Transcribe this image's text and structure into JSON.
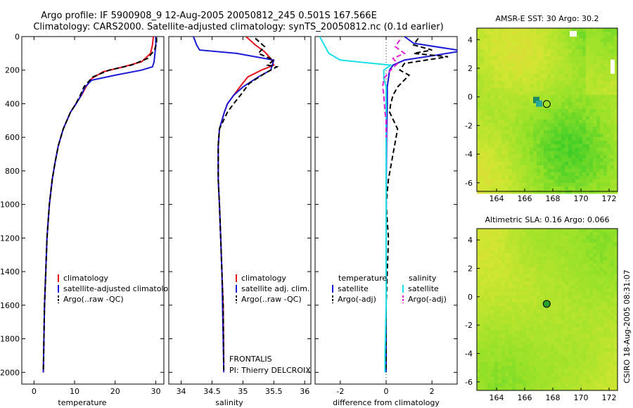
{
  "figure": {
    "title_line1": "Argo profile: IF 5900908_9 12-Aug-2005 20050812_245 0.501S 167.566E",
    "title_line2": "Climatology: CARS2000. Satellite-adjusted climatology: synTS_20050812.nc (0.1d earlier)",
    "credit": "CSIRO 18-Aug-2005 08:31:07",
    "program": "FRONTALIS",
    "pi": "PI: Thierry DELCROIX"
  },
  "colors": {
    "climatology": "#e8141b",
    "satellite": "#1a1ad6",
    "argo": "#000000",
    "satellite_diff_sal": "#19e0e8",
    "argo_diff_sal": "#e41ed6"
  },
  "chart_data": [
    {
      "type": "line",
      "xlabel": "temperature",
      "ylabel": "",
      "xlim": [
        -3,
        32
      ],
      "ylim": [
        2070,
        0
      ],
      "xticks": [
        0,
        10,
        20,
        30
      ],
      "yticks": [
        0,
        200,
        400,
        600,
        800,
        1000,
        1200,
        1400,
        1600,
        1800,
        2000
      ],
      "legend": [
        "climatology",
        "satellite-adjusted climatology",
        "Argo(..raw -QC)"
      ],
      "series": [
        {
          "name": "climatology",
          "x": [
            29.4,
            29.2,
            28.7,
            26.5,
            22.0,
            17.0,
            14.2,
            12.8,
            11.7,
            10.3,
            9.0,
            7.2,
            6.0,
            5.2,
            4.5,
            3.8,
            3.2,
            2.9,
            2.6,
            2.3
          ],
          "y": [
            0,
            50,
            100,
            150,
            180,
            210,
            250,
            300,
            350,
            400,
            450,
            550,
            650,
            750,
            850,
            1000,
            1200,
            1400,
            1600,
            2000
          ]
        },
        {
          "name": "satellite-adjusted climatology",
          "x": [
            30.0,
            30.0,
            29.8,
            29.6,
            29.2,
            26.5,
            20.0,
            14.2,
            12.6,
            11.6,
            10.4,
            9.0,
            7.2,
            6.0,
            5.2,
            4.5,
            3.8,
            3.2,
            2.9,
            2.6,
            2.3
          ],
          "y": [
            0,
            50,
            100,
            150,
            180,
            200,
            230,
            260,
            300,
            350,
            400,
            450,
            550,
            650,
            750,
            850,
            1000,
            1200,
            1400,
            1600,
            2000
          ]
        },
        {
          "name": "Argo(..raw -QC)",
          "x": [
            30.2,
            30.2,
            29.7,
            28.0,
            24.0,
            18.5,
            14.5,
            12.3,
            11.4,
            10.3,
            9.0,
            7.2,
            6.0,
            5.2,
            4.5,
            3.8,
            3.2,
            2.9,
            2.6,
            2.3
          ],
          "y": [
            5,
            40,
            80,
            130,
            170,
            200,
            240,
            300,
            350,
            400,
            450,
            550,
            650,
            750,
            850,
            1000,
            1200,
            1400,
            1600,
            2000
          ]
        }
      ]
    },
    {
      "type": "line",
      "xlabel": "salinity",
      "ylabel": "",
      "xlim": [
        33.8,
        36.1
      ],
      "ylim": [
        2070,
        0
      ],
      "xticks": [
        34,
        34.5,
        35,
        35.5,
        36
      ],
      "xticklabels": [
        "34",
        "34.5",
        "35",
        "35.5",
        "36"
      ],
      "legend": [
        "climatology",
        "satellite adj. clim.",
        "Argo(..raw -QC)"
      ],
      "series": [
        {
          "name": "climatology",
          "x": [
            35.05,
            35.2,
            35.35,
            35.45,
            35.5,
            35.3,
            35.08,
            34.95,
            34.85,
            34.75,
            34.7,
            34.62,
            34.6,
            34.6,
            34.6,
            34.62,
            34.64,
            34.66,
            34.68,
            34.69
          ],
          "y": [
            0,
            50,
            90,
            130,
            170,
            200,
            240,
            300,
            350,
            400,
            450,
            550,
            650,
            750,
            850,
            1000,
            1200,
            1400,
            1600,
            1950
          ]
        },
        {
          "name": "satellite adj. clim.",
          "x": [
            34.2,
            34.25,
            34.3,
            34.9,
            35.5,
            35.45,
            35.25,
            35.0,
            34.85,
            34.75,
            34.7,
            34.62,
            34.6,
            34.6,
            34.6,
            34.62,
            34.64,
            34.66,
            34.67,
            34.69
          ],
          "y": [
            0,
            50,
            80,
            100,
            140,
            200,
            240,
            300,
            350,
            400,
            450,
            550,
            650,
            750,
            850,
            1000,
            1200,
            1400,
            1600,
            2000
          ]
        },
        {
          "name": "Argo(..raw -QC)",
          "x": [
            35.2,
            35.35,
            35.25,
            35.5,
            35.4,
            35.55,
            35.35,
            35.1,
            34.98,
            34.85,
            34.75,
            34.62,
            34.6,
            34.6,
            34.6,
            34.62,
            34.64,
            34.66,
            34.68,
            34.69
          ],
          "y": [
            10,
            60,
            100,
            140,
            170,
            180,
            220,
            280,
            340,
            400,
            450,
            550,
            650,
            750,
            850,
            1000,
            1200,
            1400,
            1600,
            2000
          ]
        }
      ],
      "annotations": [
        "FRONTALIS",
        "PI: Thierry DELCROIX"
      ]
    },
    {
      "type": "line",
      "xlabel": "difference from climatology",
      "ylabel": "",
      "xlim": [
        -3.1,
        3.1
      ],
      "ylim": [
        2070,
        0
      ],
      "xticks": [
        -2,
        0,
        2
      ],
      "legend": [
        "temperature",
        "satellite",
        "Argo(-adj)",
        "salinity",
        "satellite",
        "Argo(-adj)"
      ],
      "series": [
        {
          "name": "temperature satellite",
          "x": [
            0.8,
            1.2,
            3.1,
            3.1,
            2.2,
            0.8,
            0.3,
            0.15,
            0.1,
            0.05,
            0.05,
            0.02,
            0.01,
            0.0,
            0.0,
            0.0
          ],
          "y": [
            0,
            40,
            80,
            90,
            110,
            140,
            170,
            200,
            250,
            300,
            400,
            600,
            800,
            1200,
            1600,
            2000
          ]
        },
        {
          "name": "temperature Argo(-adj)",
          "x": [
            1.4,
            1.2,
            2.0,
            1.2,
            2.7,
            0.8,
            0.6,
            1.0,
            0.5,
            0.3,
            0.2,
            0.15,
            0.5,
            0.3,
            0.1,
            0.0,
            0.1,
            0.0,
            0.0
          ],
          "y": [
            10,
            50,
            80,
            100,
            120,
            160,
            200,
            230,
            300,
            350,
            400,
            450,
            550,
            700,
            850,
            1000,
            1200,
            1600,
            2000
          ]
        },
        {
          "name": "salinity satellite",
          "x": [
            -2.9,
            -2.7,
            -2.5,
            -2.0,
            0.2,
            -0.1,
            -0.1,
            0.0,
            0.0,
            0.0,
            0.0,
            0.0,
            -0.05,
            -0.05
          ],
          "y": [
            0,
            50,
            100,
            140,
            170,
            200,
            250,
            300,
            500,
            800,
            1200,
            1600,
            1900,
            2000
          ]
        },
        {
          "name": "salinity Argo(-adj)",
          "x": [
            0.6,
            0.4,
            0.8,
            0.3,
            0.5,
            0.2,
            -0.1,
            -0.15,
            -0.1,
            -0.05,
            0.0,
            0.0
          ],
          "y": [
            20,
            60,
            100,
            130,
            160,
            200,
            250,
            300,
            350,
            450,
            500,
            600
          ]
        }
      ]
    },
    {
      "type": "heatmap",
      "title": "AMSR-E SST: 30 Argo: 30.2",
      "xlim": [
        162.6,
        172.6
      ],
      "ylim": [
        -6.6,
        4.8
      ],
      "xticks": [
        164,
        166,
        168,
        170,
        172
      ],
      "yticks": [
        4,
        2,
        0,
        -2,
        -4,
        -6
      ],
      "xticklabels": [
        "164",
        "166",
        "168",
        "170",
        "172"
      ],
      "yticklabels": [
        "4",
        "2",
        "0",
        "-2",
        "-4",
        "-6"
      ],
      "marker": {
        "lon": 167.566,
        "lat": -0.501
      }
    },
    {
      "type": "heatmap",
      "title": "Altimetric SLA: 0.16 Argo: 0.066",
      "xlim": [
        162.6,
        172.6
      ],
      "ylim": [
        -6.6,
        4.8
      ],
      "xticks": [
        164,
        166,
        168,
        170,
        172
      ],
      "yticks": [
        4,
        2,
        0,
        -2,
        -4,
        -6
      ],
      "xticklabels": [
        "164",
        "166",
        "168",
        "170",
        "172"
      ],
      "yticklabels": [
        "4",
        "2",
        "0",
        "-2",
        "-4",
        "-6"
      ],
      "marker": {
        "lon": 167.566,
        "lat": -0.501
      }
    }
  ]
}
